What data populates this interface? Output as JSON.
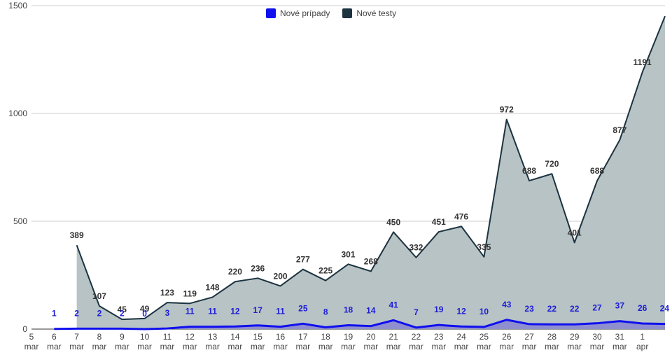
{
  "chart_data": {
    "type": "area",
    "x_labels": [
      "5 mar",
      "6 mar",
      "7 mar",
      "8 mar",
      "9 mar",
      "10 mar",
      "11 mar",
      "12 mar",
      "13 mar",
      "14 mar",
      "15 mar",
      "16 mar",
      "17 mar",
      "18 mar",
      "19 mar",
      "20 mar",
      "21 mar",
      "22 mar",
      "23 mar",
      "24 mar",
      "25 mar",
      "26 mar",
      "27 mar",
      "28 mar",
      "29 mar",
      "30 mar",
      "31 mar",
      "1 apr",
      ""
    ],
    "ylim": [
      0,
      1500
    ],
    "yticks": [
      0,
      500,
      1000,
      1500
    ],
    "grid": true,
    "legend_position": "top",
    "series": [
      {
        "name": "Nové prípady",
        "color": "#1010ee",
        "fill": "#8f8fcf",
        "values": [
          null,
          1,
          2,
          2,
          2,
          0,
          3,
          11,
          11,
          12,
          17,
          11,
          25,
          8,
          18,
          14,
          41,
          7,
          19,
          12,
          10,
          43,
          23,
          22,
          22,
          27,
          37,
          26,
          24
        ]
      },
      {
        "name": "Nové testy",
        "color": "#1c3340",
        "fill": "#b8c3c5",
        "values": [
          null,
          null,
          389,
          107,
          45,
          49,
          123,
          119,
          148,
          220,
          236,
          200,
          277,
          225,
          301,
          268,
          450,
          332,
          451,
          476,
          335,
          972,
          688,
          720,
          401,
          688,
          877,
          1191,
          1451
        ],
        "labels": [
          null,
          null,
          "389",
          "107",
          "45",
          "49",
          "123",
          "119",
          "148",
          "220",
          "236",
          "200",
          "277",
          "225",
          "301",
          "268",
          "450",
          "332",
          "451",
          "476",
          "335",
          "972",
          "688",
          "720",
          "401",
          "688",
          "877",
          "1191",
          null
        ]
      }
    ]
  }
}
